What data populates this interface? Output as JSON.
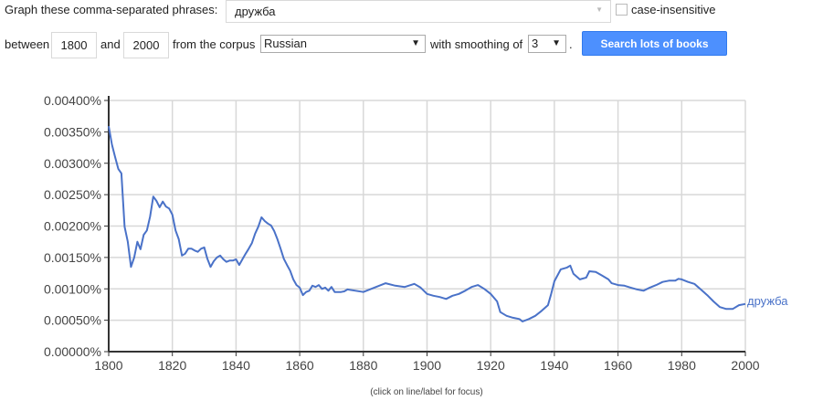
{
  "form": {
    "phrases_label": "Graph these comma-separated phrases:",
    "phrases_value": "дружба",
    "case_insensitive_label": "case-insensitive",
    "between_label": "between",
    "start_year": "1800",
    "and_label": "and",
    "end_year": "2000",
    "corpus_label": "from the corpus",
    "corpus_value": "Russian",
    "smoothing_label": "with smoothing of",
    "smoothing_value": "3",
    "period": ".",
    "search_button": "Search lots of books",
    "dropdown_arrow": "▼"
  },
  "chart_data": {
    "type": "line",
    "xlim": [
      1800,
      2000
    ],
    "ylim": [
      0,
      0.004
    ],
    "x_ticks": [
      "1800",
      "1820",
      "1840",
      "1860",
      "1880",
      "1900",
      "1920",
      "1940",
      "1960",
      "1980",
      "2000"
    ],
    "y_ticks": [
      "0.00000%",
      "0.00050%",
      "0.00100%",
      "0.00150%",
      "0.00200%",
      "0.00250%",
      "0.00300%",
      "0.00350%",
      "0.00400%"
    ],
    "grid": true,
    "footer_note": "(click on line/label for focus)",
    "color": "#4a72c8",
    "series": [
      {
        "name": "дружба",
        "x": [
          1800,
          1801,
          1802,
          1803,
          1804,
          1805,
          1806,
          1807,
          1808,
          1809,
          1810,
          1811,
          1812,
          1813,
          1814,
          1815,
          1816,
          1817,
          1818,
          1819,
          1820,
          1821,
          1822,
          1823,
          1824,
          1825,
          1826,
          1827,
          1828,
          1829,
          1830,
          1831,
          1832,
          1833,
          1834,
          1835,
          1836,
          1837,
          1838,
          1839,
          1840,
          1841,
          1842,
          1843,
          1844,
          1845,
          1846,
          1847,
          1848,
          1849,
          1850,
          1851,
          1852,
          1853,
          1854,
          1855,
          1856,
          1857,
          1858,
          1859,
          1860,
          1861,
          1862,
          1863,
          1864,
          1865,
          1866,
          1867,
          1868,
          1869,
          1870,
          1871,
          1872,
          1873,
          1874,
          1875,
          1880,
          1884,
          1887,
          1890,
          1893,
          1896,
          1898,
          1900,
          1902,
          1904,
          1906,
          1908,
          1910,
          1912,
          1914,
          1916,
          1918,
          1920,
          1922,
          1923,
          1925,
          1927,
          1929,
          1930,
          1932,
          1934,
          1936,
          1938,
          1939,
          1940,
          1942,
          1944,
          1945,
          1946,
          1948,
          1950,
          1951,
          1953,
          1955,
          1957,
          1958,
          1960,
          1962,
          1964,
          1966,
          1968,
          1970,
          1972,
          1974,
          1976,
          1978,
          1979,
          1980,
          1982,
          1984,
          1986,
          1988,
          1990,
          1992,
          1994,
          1996,
          1998,
          2000
        ],
        "y": [
          0.00359,
          0.0033,
          0.0031,
          0.00291,
          0.00284,
          0.00199,
          0.00175,
          0.00135,
          0.0015,
          0.00175,
          0.00163,
          0.00186,
          0.00193,
          0.00215,
          0.00247,
          0.0024,
          0.0023,
          0.00239,
          0.00231,
          0.00228,
          0.00218,
          0.00193,
          0.00179,
          0.00153,
          0.00156,
          0.00164,
          0.00164,
          0.00161,
          0.00159,
          0.00164,
          0.00166,
          0.00148,
          0.00135,
          0.00144,
          0.0015,
          0.00153,
          0.00147,
          0.00143,
          0.00145,
          0.00145,
          0.00147,
          0.00138,
          0.00147,
          0.00156,
          0.00164,
          0.00173,
          0.00188,
          0.00199,
          0.00214,
          0.00208,
          0.00204,
          0.00201,
          0.00192,
          0.00179,
          0.00164,
          0.00148,
          0.00138,
          0.00129,
          0.00115,
          0.00106,
          0.00102,
          0.0009,
          0.00095,
          0.00097,
          0.00105,
          0.00103,
          0.00106,
          0.001,
          0.00102,
          0.00097,
          0.00103,
          0.00095,
          0.00095,
          0.00095,
          0.00096,
          0.00099,
          0.00095,
          0.00103,
          0.00109,
          0.00105,
          0.00103,
          0.00108,
          0.00102,
          0.00092,
          0.00089,
          0.00087,
          0.00084,
          0.00089,
          0.00092,
          0.00097,
          0.00103,
          0.00106,
          0.001,
          0.00092,
          0.0008,
          0.00063,
          0.00057,
          0.00054,
          0.00052,
          0.00048,
          0.00052,
          0.00057,
          0.00065,
          0.00074,
          0.00092,
          0.00112,
          0.00131,
          0.00134,
          0.00137,
          0.00124,
          0.00115,
          0.00118,
          0.00128,
          0.00127,
          0.00121,
          0.00115,
          0.00109,
          0.00106,
          0.00105,
          0.00102,
          0.00099,
          0.00097,
          0.00102,
          0.00106,
          0.00111,
          0.00113,
          0.00113,
          0.00116,
          0.00115,
          0.00111,
          0.00108,
          0.00099,
          0.0009,
          0.0008,
          0.00071,
          0.00068,
          0.00068,
          0.00074,
          0.00076
        ]
      }
    ]
  }
}
